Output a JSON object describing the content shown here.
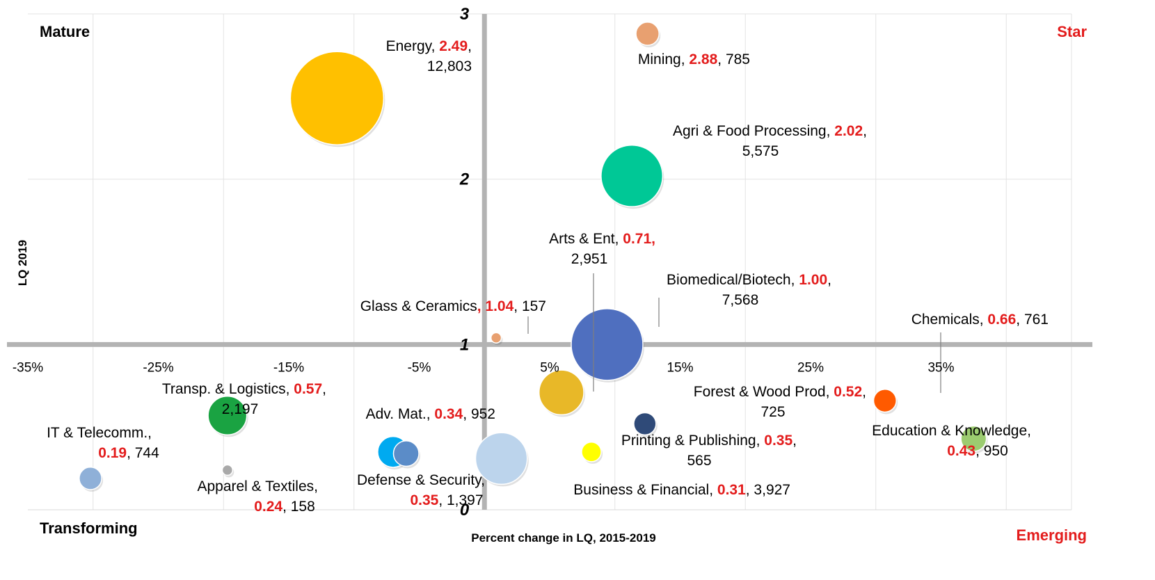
{
  "chart_data": {
    "type": "scatter",
    "subtype": "bubble",
    "xlabel": "Percent change in LQ, 2015-2019",
    "ylabel": "LQ 2019",
    "xlim": [
      -35,
      45
    ],
    "ylim": [
      0,
      3
    ],
    "x_ticks": [
      {
        "value": -35,
        "label": "-35%"
      },
      {
        "value": -25,
        "label": "-25%"
      },
      {
        "value": -15,
        "label": "-15%"
      },
      {
        "value": -5,
        "label": "-5%"
      },
      {
        "value": 5,
        "label": "5%"
      },
      {
        "value": 15,
        "label": "15%"
      },
      {
        "value": 25,
        "label": "25%"
      },
      {
        "value": 35,
        "label": "35%"
      }
    ],
    "y_ticks": [
      {
        "value": 0,
        "label": "0"
      },
      {
        "value": 1,
        "label": "1"
      },
      {
        "value": 2,
        "label": "2"
      },
      {
        "value": 3,
        "label": "3"
      }
    ],
    "quadrants": {
      "top_left": "Mature",
      "top_right": "Star",
      "bottom_left": "Transforming",
      "bottom_right": "Emerging"
    },
    "points": [
      {
        "name": "Energy",
        "x": -11.3,
        "y": 2.49,
        "lq": "2.49",
        "size": "12,803",
        "color": "#ffc000",
        "sep": ",",
        "label_lines": [
          [
            "Energy, ",
            "2.49",
            ","
          ],
          [
            "12,803"
          ]
        ]
      },
      {
        "name": "Mining",
        "x": 12.5,
        "y": 2.88,
        "lq": "2.88",
        "size": "785",
        "color": "#e8a070",
        "sep": ",",
        "label_lines": [
          [
            "Mining, ",
            "2.88",
            ", 785"
          ]
        ]
      },
      {
        "name": "Agri & Food Processing",
        "x": 11.3,
        "y": 2.02,
        "lq": "2.02",
        "size": "5,575",
        "color": "#00c896",
        "sep": ",",
        "label_lines": [
          [
            "Agri & Food Processing, ",
            "2.02",
            ","
          ],
          [
            "5,575"
          ]
        ]
      },
      {
        "name": "Arts & Ent",
        "x": 5.9,
        "y": 0.71,
        "lq": "0.71",
        "size": "2,951",
        "color": "#e8b828",
        "sep": ",",
        "label_lines": [
          [
            "Arts & Ent, ",
            "0.71,",
            ""
          ],
          [
            "2,951"
          ]
        ]
      },
      {
        "name": "Biomedical/Biotech",
        "x": 9.4,
        "y": 1.0,
        "lq": "1.00",
        "size": "7,568",
        "color": "#4f6fbf",
        "sep": ",",
        "label_lines": [
          [
            "Biomedical/Biotech, ",
            "1.00",
            ","
          ],
          [
            "7,568"
          ]
        ]
      },
      {
        "name": "Glass & Ceramics",
        "x": 0.9,
        "y": 1.04,
        "lq": "1.04",
        "size": "157",
        "color": "#e8a070",
        "sep": ",",
        "label_lines": [
          [
            "Glass & Ceramics",
            ", 1.04",
            ", 157"
          ]
        ]
      },
      {
        "name": "Chemicals",
        "x": 30.7,
        "y": 0.66,
        "lq": "0.66",
        "size": "761",
        "color": "#ff5a00",
        "sep": ",",
        "label_lines": [
          [
            "Chemicals, ",
            "0.66",
            ", 761"
          ]
        ]
      },
      {
        "name": "Forest & Wood Prod",
        "x": 12.3,
        "y": 0.52,
        "lq": "0.52",
        "size": "725",
        "color": "#2f4a78",
        "sep": ",",
        "label_lines": [
          [
            "Forest & Wood Prod, ",
            "0.52",
            ","
          ],
          [
            "725"
          ]
        ]
      },
      {
        "name": "Education & Knowledge",
        "x": 37.5,
        "y": 0.43,
        "lq": "0.43",
        "size": "950",
        "color": "#9ccc70",
        "sep": ",",
        "label_lines": [
          [
            "Education & Knowledge",
            "",
            ","
          ],
          [
            "",
            "0.43",
            ", 950"
          ]
        ]
      },
      {
        "name": "Printing & Publishing",
        "x": 8.2,
        "y": 0.35,
        "lq": "0.35",
        "size": "565",
        "color": "#ffff00",
        "sep": ",",
        "label_lines": [
          [
            "Printing & Publishing, ",
            "0.35",
            ","
          ],
          [
            "565"
          ]
        ]
      },
      {
        "name": "Business & Financial",
        "x": 1.3,
        "y": 0.31,
        "lq": "0.31",
        "size": "3,927",
        "color": "#bcd4ec",
        "sep": ",",
        "label_lines": [
          [
            "Business & Financial, ",
            "0.31",
            ", 3,927"
          ]
        ]
      },
      {
        "name": "Transp. & Logistics",
        "x": -19.7,
        "y": 0.57,
        "lq": "0.57",
        "size": "2,197",
        "color": "#1aa342",
        "sep": ",",
        "label_lines": [
          [
            "Transp. & Logistics, ",
            "0.57",
            ","
          ],
          [
            "2,197"
          ]
        ]
      },
      {
        "name": "Adv. Mat.",
        "x": -6.0,
        "y": 0.34,
        "lq": "0.34",
        "size": "952",
        "color": "#5b8cc8",
        "sep": ",",
        "label_lines": [
          [
            "Adv. Mat., ",
            "0.34",
            ", 952"
          ]
        ]
      },
      {
        "name": "Defense & Security",
        "x": -7.0,
        "y": 0.35,
        "lq": "0.35",
        "size": "1,397",
        "color": "#00aaf0",
        "sep": ",",
        "label_lines": [
          [
            "Defense & Security,"
          ],
          [
            "",
            "0.35",
            ", 1,397"
          ]
        ]
      },
      {
        "name": "IT & Telecomm.",
        "x": -30.2,
        "y": 0.19,
        "lq": "0.19",
        "size": "744",
        "color": "#8fb0d8",
        "sep": ",",
        "label_lines": [
          [
            "IT & Telecomm.,"
          ],
          [
            "",
            "0.19",
            ", 744"
          ]
        ]
      },
      {
        "name": "Apparel & Textiles",
        "x": -19.7,
        "y": 0.24,
        "lq": "0.24",
        "size": "158",
        "color": "#a9a9a9",
        "sep": ",",
        "label_lines": [
          [
            "Apparel & Textiles,"
          ],
          [
            "",
            "0.24",
            ", 158"
          ]
        ]
      }
    ]
  }
}
